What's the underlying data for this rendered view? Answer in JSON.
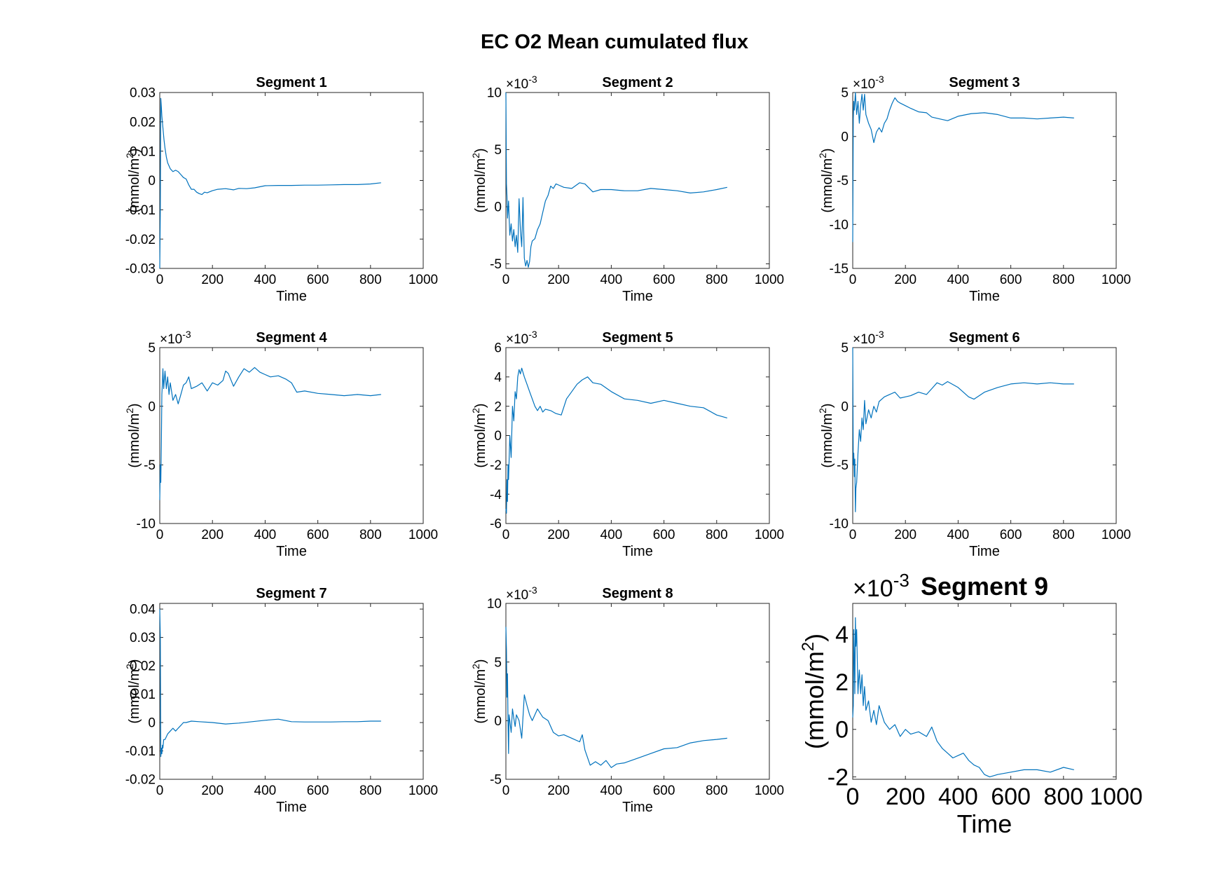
{
  "figure_title": "EC O2 Mean cumulated flux",
  "chart_data": [
    {
      "type": "line",
      "title": "Segment 1",
      "xlabel": "Time",
      "ylabel": "(mmol/m2)",
      "xlim": [
        0,
        1000
      ],
      "xticks": [
        0,
        200,
        400,
        600,
        800,
        1000
      ],
      "ylim": [
        -0.03,
        0.03
      ],
      "yticks": [
        -0.03,
        -0.02,
        -0.01,
        0,
        0.01,
        0.02,
        0.03
      ],
      "yticklabels": [
        "-0.03",
        "-0.02",
        "-0.01",
        "0",
        "0.01",
        "0.02",
        "0.03"
      ],
      "exponent": "",
      "large": false,
      "color": "#0072BD",
      "series": [
        {
          "x": [
            0,
            2,
            4,
            6,
            8,
            12,
            16,
            20,
            25,
            30,
            40,
            50,
            60,
            70,
            80,
            90,
            100,
            110,
            120,
            130,
            140,
            150,
            160,
            170,
            180,
            200,
            220,
            250,
            280,
            300,
            330,
            360,
            400,
            450,
            500,
            550,
            600,
            650,
            700,
            750,
            800,
            840
          ],
          "y": [
            -0.03,
            -0.01,
            0.028,
            0.025,
            0.022,
            0.018,
            0.014,
            0.011,
            0.008,
            0.006,
            0.004,
            0.003,
            0.0035,
            0.003,
            0.002,
            0.001,
            0.0005,
            -0.0015,
            -0.003,
            -0.003,
            -0.004,
            -0.0045,
            -0.0048,
            -0.004,
            -0.0042,
            -0.0035,
            -0.003,
            -0.0028,
            -0.0032,
            -0.0027,
            -0.0028,
            -0.0025,
            -0.0018,
            -0.0017,
            -0.0017,
            -0.0016,
            -0.0016,
            -0.0015,
            -0.0014,
            -0.0014,
            -0.0012,
            -0.0008
          ]
        }
      ]
    },
    {
      "type": "line",
      "title": "Segment 2",
      "xlabel": "Time",
      "ylabel": "(mmol/m2)",
      "xlim": [
        0,
        1000
      ],
      "xticks": [
        0,
        200,
        400,
        600,
        800,
        1000
      ],
      "ylim": [
        -5.4,
        10
      ],
      "yticks": [
        -5,
        0,
        5,
        10
      ],
      "yticklabels": [
        "-5",
        "0",
        "5",
        "10"
      ],
      "exponent": "-3",
      "large": false,
      "color": "#0072BD",
      "series": [
        {
          "x": [
            0,
            2,
            4,
            6,
            10,
            15,
            20,
            25,
            30,
            35,
            40,
            45,
            50,
            55,
            60,
            65,
            70,
            75,
            80,
            85,
            90,
            95,
            100,
            110,
            120,
            130,
            140,
            150,
            160,
            170,
            180,
            190,
            200,
            220,
            250,
            280,
            300,
            330,
            360,
            400,
            450,
            500,
            550,
            600,
            650,
            700,
            750,
            800,
            840
          ],
          "y": [
            10,
            2,
            1,
            -1,
            0.5,
            -2.5,
            -1.5,
            -3,
            -2,
            -3.5,
            -2.5,
            -4,
            0.7,
            -2,
            -3.5,
            0.8,
            -4.5,
            -5.2,
            -4.7,
            -5.3,
            -4.8,
            -3.5,
            -3,
            -2.8,
            -2,
            -1.5,
            -0.5,
            0.5,
            1,
            1.8,
            1.6,
            2,
            1.9,
            1.7,
            1.6,
            2.1,
            2,
            1.3,
            1.5,
            1.5,
            1.4,
            1.4,
            1.6,
            1.5,
            1.4,
            1.2,
            1.3,
            1.5,
            1.7
          ]
        }
      ]
    },
    {
      "type": "line",
      "title": "Segment 3",
      "xlabel": "Time",
      "ylabel": "(mmol/m2)",
      "xlim": [
        0,
        1000
      ],
      "xticks": [
        0,
        200,
        400,
        600,
        800,
        1000
      ],
      "ylim": [
        -15,
        5
      ],
      "yticks": [
        -15,
        -10,
        -5,
        0,
        5
      ],
      "yticklabels": [
        "-15",
        "-10",
        "-5",
        "0",
        "5"
      ],
      "exponent": "-3",
      "large": false,
      "color": "#0072BD",
      "series": [
        {
          "x": [
            0,
            2,
            4,
            6,
            10,
            15,
            20,
            25,
            30,
            35,
            40,
            45,
            50,
            55,
            60,
            70,
            80,
            90,
            100,
            110,
            120,
            130,
            140,
            150,
            160,
            170,
            180,
            200,
            220,
            250,
            280,
            300,
            330,
            360,
            400,
            450,
            500,
            550,
            600,
            650,
            700,
            750,
            800,
            840
          ],
          "y": [
            -12,
            2,
            4,
            3,
            5,
            2.5,
            4,
            1.5,
            3.5,
            4.8,
            3,
            4.8,
            2.5,
            2,
            1.5,
            0.8,
            -0.7,
            0.5,
            1,
            0.5,
            1.5,
            2,
            3,
            3.8,
            4.4,
            4,
            3.8,
            3.5,
            3.2,
            2.8,
            2.7,
            2.2,
            2.0,
            1.8,
            2.3,
            2.6,
            2.7,
            2.5,
            2.1,
            2.1,
            2.0,
            2.1,
            2.2,
            2.1
          ]
        }
      ]
    },
    {
      "type": "line",
      "title": "Segment 4",
      "xlabel": "Time",
      "ylabel": "(mmol/m2)",
      "xlim": [
        0,
        1000
      ],
      "xticks": [
        0,
        200,
        400,
        600,
        800,
        1000
      ],
      "ylim": [
        -10,
        5
      ],
      "yticks": [
        -10,
        -5,
        0,
        5
      ],
      "yticklabels": [
        "-10",
        "-5",
        "0",
        "5"
      ],
      "exponent": "-3",
      "large": false,
      "color": "#0072BD",
      "series": [
        {
          "x": [
            0,
            2,
            4,
            6,
            8,
            10,
            12,
            15,
            20,
            25,
            30,
            35,
            40,
            50,
            60,
            70,
            80,
            90,
            100,
            110,
            120,
            140,
            160,
            180,
            200,
            220,
            240,
            250,
            260,
            280,
            300,
            320,
            340,
            360,
            380,
            400,
            420,
            450,
            480,
            500,
            520,
            550,
            600,
            650,
            700,
            750,
            800,
            840
          ],
          "y": [
            -8,
            -5,
            -6.5,
            -3,
            1,
            2,
            3.2,
            1.5,
            3,
            1.5,
            2.5,
            1,
            2,
            0.5,
            1,
            0.2,
            1,
            1.8,
            2,
            2.5,
            1.5,
            1.7,
            2,
            1.3,
            2,
            1.8,
            2.2,
            3,
            2.8,
            1.7,
            2.5,
            3.2,
            2.9,
            3.3,
            2.9,
            2.7,
            2.5,
            2.6,
            2.3,
            2,
            1.2,
            1.3,
            1.1,
            1.0,
            0.9,
            1.0,
            0.9,
            1.0
          ]
        }
      ]
    },
    {
      "type": "line",
      "title": "Segment 5",
      "xlabel": "Time",
      "ylabel": "(mmol/m2)",
      "xlim": [
        0,
        1000
      ],
      "xticks": [
        0,
        200,
        400,
        600,
        800,
        1000
      ],
      "ylim": [
        -6,
        6
      ],
      "yticks": [
        -6,
        -4,
        -2,
        0,
        2,
        4,
        6
      ],
      "yticklabels": [
        "-6",
        "-4",
        "-2",
        "0",
        "2",
        "4",
        "6"
      ],
      "exponent": "-3",
      "large": false,
      "color": "#0072BD",
      "series": [
        {
          "x": [
            0,
            2,
            4,
            6,
            8,
            10,
            15,
            20,
            25,
            30,
            35,
            40,
            45,
            50,
            55,
            60,
            70,
            80,
            90,
            100,
            110,
            120,
            130,
            140,
            150,
            170,
            190,
            210,
            230,
            250,
            270,
            290,
            310,
            330,
            360,
            400,
            450,
            500,
            550,
            600,
            650,
            700,
            750,
            800,
            840
          ],
          "y": [
            -5,
            -5.3,
            -3,
            -4.5,
            -2,
            -3,
            0,
            -1.5,
            2,
            1,
            3,
            2.5,
            4,
            4.5,
            4.2,
            4.6,
            4,
            3.5,
            3,
            2.5,
            2,
            1.7,
            2,
            1.6,
            1.8,
            1.7,
            1.5,
            1.4,
            2.5,
            3,
            3.5,
            3.8,
            4,
            3.6,
            3.5,
            3.0,
            2.5,
            2.4,
            2.2,
            2.4,
            2.2,
            2.0,
            1.9,
            1.4,
            1.2
          ]
        }
      ]
    },
    {
      "type": "line",
      "title": "Segment 6",
      "xlabel": "Time",
      "ylabel": "(mmol/m2)",
      "xlim": [
        0,
        1000
      ],
      "xticks": [
        0,
        200,
        400,
        600,
        800,
        1000
      ],
      "ylim": [
        -10,
        5
      ],
      "yticks": [
        -10,
        -5,
        0,
        5
      ],
      "yticklabels": [
        "-10",
        "-5",
        "0",
        "5"
      ],
      "exponent": "-3",
      "large": false,
      "color": "#0072BD",
      "series": [
        {
          "x": [
            0,
            2,
            4,
            6,
            8,
            10,
            12,
            15,
            20,
            25,
            30,
            35,
            40,
            45,
            50,
            60,
            70,
            80,
            90,
            100,
            120,
            140,
            160,
            180,
            200,
            220,
            250,
            280,
            300,
            320,
            340,
            360,
            400,
            440,
            460,
            480,
            500,
            550,
            600,
            650,
            700,
            750,
            800,
            840
          ],
          "y": [
            5,
            -5,
            -4,
            -6,
            -4.5,
            -9,
            -7,
            -6.5,
            -4,
            -2,
            -3,
            -1,
            -2,
            0.5,
            -1.5,
            -0.3,
            -1,
            0,
            -0.5,
            0.4,
            0.8,
            1,
            1.2,
            0.7,
            0.8,
            0.9,
            1.2,
            1.0,
            1.5,
            2.0,
            1.8,
            2.1,
            1.6,
            0.8,
            0.6,
            0.9,
            1.2,
            1.6,
            1.9,
            2.0,
            1.9,
            2.0,
            1.9,
            1.9
          ]
        }
      ]
    },
    {
      "type": "line",
      "title": "Segment 7",
      "xlabel": "Time",
      "ylabel": "(mmol/m2)",
      "xlim": [
        0,
        1000
      ],
      "xticks": [
        0,
        200,
        400,
        600,
        800,
        1000
      ],
      "ylim": [
        -0.02,
        0.042
      ],
      "yticks": [
        -0.02,
        -0.01,
        0,
        0.01,
        0.02,
        0.03,
        0.04
      ],
      "yticklabels": [
        "-0.02",
        "-0.01",
        "0",
        "0.01",
        "0.02",
        "0.03",
        "0.04"
      ],
      "exponent": "",
      "large": false,
      "color": "#0072BD",
      "series": [
        {
          "x": [
            0,
            2,
            4,
            6,
            8,
            10,
            12,
            15,
            20,
            25,
            30,
            40,
            50,
            60,
            70,
            80,
            90,
            100,
            120,
            150,
            200,
            250,
            300,
            350,
            400,
            450,
            500,
            550,
            600,
            650,
            700,
            750,
            800,
            840
          ],
          "y": [
            0.04,
            0.03,
            -0.012,
            -0.009,
            -0.011,
            -0.008,
            -0.009,
            -0.006,
            -0.006,
            -0.005,
            -0.004,
            -0.003,
            -0.002,
            -0.003,
            -0.002,
            -0.001,
            0,
            0,
            0.0005,
            0.0003,
            0,
            -0.0005,
            -0.0002,
            0.0003,
            0.0008,
            0.0012,
            0.0003,
            0.0002,
            0.0002,
            0.0002,
            0.0003,
            0.0003,
            0.0005,
            0.0005
          ]
        }
      ]
    },
    {
      "type": "line",
      "title": "Segment 8",
      "xlabel": "Time",
      "ylabel": "(mmol/m2)",
      "xlim": [
        0,
        1000
      ],
      "xticks": [
        0,
        200,
        400,
        600,
        800,
        1000
      ],
      "ylim": [
        -5,
        10
      ],
      "yticks": [
        -5,
        0,
        5,
        10
      ],
      "yticklabels": [
        "-5",
        "0",
        "5",
        "10"
      ],
      "exponent": "-3",
      "large": false,
      "color": "#0072BD",
      "series": [
        {
          "x": [
            0,
            2,
            4,
            6,
            8,
            10,
            12,
            15,
            20,
            25,
            30,
            35,
            40,
            50,
            60,
            70,
            80,
            90,
            100,
            120,
            140,
            160,
            180,
            200,
            220,
            250,
            280,
            290,
            300,
            320,
            340,
            360,
            380,
            400,
            420,
            450,
            500,
            550,
            600,
            650,
            700,
            750,
            800,
            840
          ],
          "y": [
            8,
            6,
            2,
            4,
            0,
            -2.8,
            0.5,
            0,
            -1,
            1,
            0.2,
            -0.5,
            0.5,
            0,
            -1.5,
            2.2,
            1.3,
            0.5,
            0,
            1,
            0.3,
            0,
            -1,
            -1.3,
            -1.2,
            -1.5,
            -1.8,
            -1.2,
            -2.5,
            -3.8,
            -3.5,
            -3.8,
            -3.4,
            -4,
            -3.7,
            -3.6,
            -3.2,
            -2.8,
            -2.4,
            -2.3,
            -1.9,
            -1.7,
            -1.6,
            -1.5
          ]
        }
      ]
    },
    {
      "type": "line",
      "title": "Segment 9",
      "xlabel": "Time",
      "ylabel": "(mmol/m2)",
      "xlim": [
        0,
        1000
      ],
      "xticks": [
        0,
        200,
        400,
        600,
        800,
        1000
      ],
      "ylim": [
        -2.1,
        5.3
      ],
      "yticks": [
        -2,
        0,
        2,
        4
      ],
      "yticklabels": [
        "-2",
        "0",
        "2",
        "4"
      ],
      "exponent": "-3",
      "large": true,
      "color": "#0072BD",
      "series": [
        {
          "x": [
            0,
            2,
            4,
            6,
            8,
            10,
            12,
            15,
            18,
            20,
            22,
            25,
            30,
            35,
            40,
            45,
            50,
            60,
            70,
            80,
            90,
            100,
            120,
            140,
            160,
            180,
            200,
            220,
            250,
            280,
            300,
            320,
            340,
            360,
            380,
            400,
            420,
            440,
            460,
            480,
            500,
            520,
            550,
            600,
            650,
            700,
            750,
            800,
            840
          ],
          "y": [
            0.5,
            1,
            4.2,
            3,
            1.5,
            4.7,
            3.5,
            4.2,
            2.5,
            1.5,
            2,
            2.5,
            1.5,
            2.3,
            1,
            1.8,
            0.8,
            1.2,
            0.3,
            0.8,
            0.2,
            1,
            0.3,
            0,
            0.2,
            -0.3,
            0,
            -0.2,
            -0.1,
            -0.3,
            0.1,
            -0.5,
            -0.8,
            -1,
            -1.2,
            -1.1,
            -1.0,
            -1.3,
            -1.5,
            -1.6,
            -1.9,
            -2.0,
            -1.9,
            -1.8,
            -1.7,
            -1.7,
            -1.8,
            -1.6,
            -1.7
          ]
        }
      ]
    }
  ]
}
